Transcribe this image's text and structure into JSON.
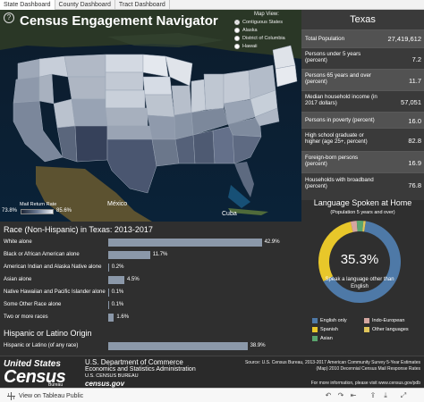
{
  "tabs": [
    {
      "label": "State Dashboard"
    },
    {
      "label": "County Dashboard"
    },
    {
      "label": "Tract Dashboard"
    }
  ],
  "header": {
    "help": "?",
    "title": "Census Engagement Navigator"
  },
  "map_view": {
    "label": "Map View:",
    "options": [
      {
        "label": "Contiguous States",
        "selected": true
      },
      {
        "label": "Alaska",
        "selected": false
      },
      {
        "label": "District of Columbia",
        "selected": false
      },
      {
        "label": "Hawaii",
        "selected": false
      }
    ]
  },
  "map_labels": {
    "mexico": "México",
    "cuba": "Cuba"
  },
  "mail_legend": {
    "title": "Mail Return Rate",
    "min": "73.8%",
    "max": "85.6%"
  },
  "state_panel": {
    "state_name": "Texas",
    "rows": [
      {
        "label": "Total Population",
        "value": "27,419,612"
      },
      {
        "label": "Persons under 5 years (percent)",
        "value": "7.2"
      },
      {
        "label": "Persons 65 years and over (percent)",
        "value": "11.7"
      },
      {
        "label": "Median household income (in 2017 dollars)",
        "value": "57,051"
      },
      {
        "label": "Persons in poverty (percent)",
        "value": "16.0"
      },
      {
        "label": "High school graduate or higher (age 25+, percent)",
        "value": "82.8"
      },
      {
        "label": "Foreign-born persons (percent)",
        "value": "16.9"
      },
      {
        "label": "Households with broadband (percent)",
        "value": "76.8"
      }
    ]
  },
  "race": {
    "title": "Race (Non-Hispanic) in Texas: 2013-2017",
    "rows": [
      {
        "label": "White alone",
        "value": 42.9,
        "display": "42.9%"
      },
      {
        "label": "Black or African American alone",
        "value": 11.7,
        "display": "11.7%"
      },
      {
        "label": "American Indian and Alaska Native alone",
        "value": 0.2,
        "display": "0.2%"
      },
      {
        "label": "Asian alone",
        "value": 4.5,
        "display": "4.5%"
      },
      {
        "label": "Native Hawaiian and Pacific Islander alone",
        "value": 0.1,
        "display": "0.1%"
      },
      {
        "label": "Some Other Race alone",
        "value": 0.1,
        "display": "0.1%"
      },
      {
        "label": "Two or more races",
        "value": 1.6,
        "display": "1.6%"
      }
    ]
  },
  "hispanic": {
    "title": "Hispanic or Latino Origin",
    "rows": [
      {
        "label": "Hispanic or Latino (of any race)",
        "value": 38.9,
        "display": "38.9%"
      }
    ]
  },
  "language": {
    "title": "Language Spoken at Home",
    "subtitle": "(Population 5 years and over)",
    "pct": "35.3%",
    "caption": "Speak a language other than English",
    "colors": {
      "English only": "#4e79a7",
      "Spanish": "#e8c72a",
      "Indo-European": "#d4a6a0",
      "Asian": "#5aa56e",
      "Other languages": "#e0c55b"
    },
    "legend": [
      {
        "label": "English only",
        "color": "#4e79a7"
      },
      {
        "label": "Indo-European",
        "color": "#d4a6a0"
      },
      {
        "label": "Spanish",
        "color": "#e8c72a"
      },
      {
        "label": "Other languages",
        "color": "#e0c55b"
      },
      {
        "label": "Asian",
        "color": "#5aa56e"
      }
    ]
  },
  "chart_data": [
    {
      "type": "bar",
      "title": "Race (Non-Hispanic) in Texas: 2013-2017",
      "categories": [
        "White alone",
        "Black or African American alone",
        "American Indian and Alaska Native alone",
        "Asian alone",
        "Native Hawaiian and Pacific Islander alone",
        "Some Other Race alone",
        "Two or more races"
      ],
      "values": [
        42.9,
        11.7,
        0.2,
        4.5,
        0.1,
        0.1,
        1.6
      ]
    },
    {
      "type": "bar",
      "title": "Hispanic or Latino Origin",
      "categories": [
        "Hispanic or Latino (of any race)"
      ],
      "values": [
        38.9
      ]
    },
    {
      "type": "pie",
      "title": "Language Spoken at Home",
      "categories": [
        "English only",
        "Spanish",
        "Indo-European",
        "Asian",
        "Other languages"
      ],
      "values": [
        64.7,
        29.4,
        2.4,
        2.6,
        0.9
      ]
    }
  ],
  "footer": {
    "logo_us": "United States",
    "logo_census": "Census",
    "logo_bureau": "Bureau",
    "dept": "U.S. Department of Commerce",
    "admin": "Economics and Statistics Administration",
    "bureau": "U.S. CENSUS BUREAU",
    "site": "census.gov",
    "source": "Source: U.S. Census Bureau, 2013-2017 American Community Survey 5-Year Estimates (Map) 2010 Decennial Census Mail Response Rates",
    "more_info": "For more information, please visit www.census.gov/pdb"
  },
  "toolbar": {
    "view_public": "View on Tableau Public"
  }
}
